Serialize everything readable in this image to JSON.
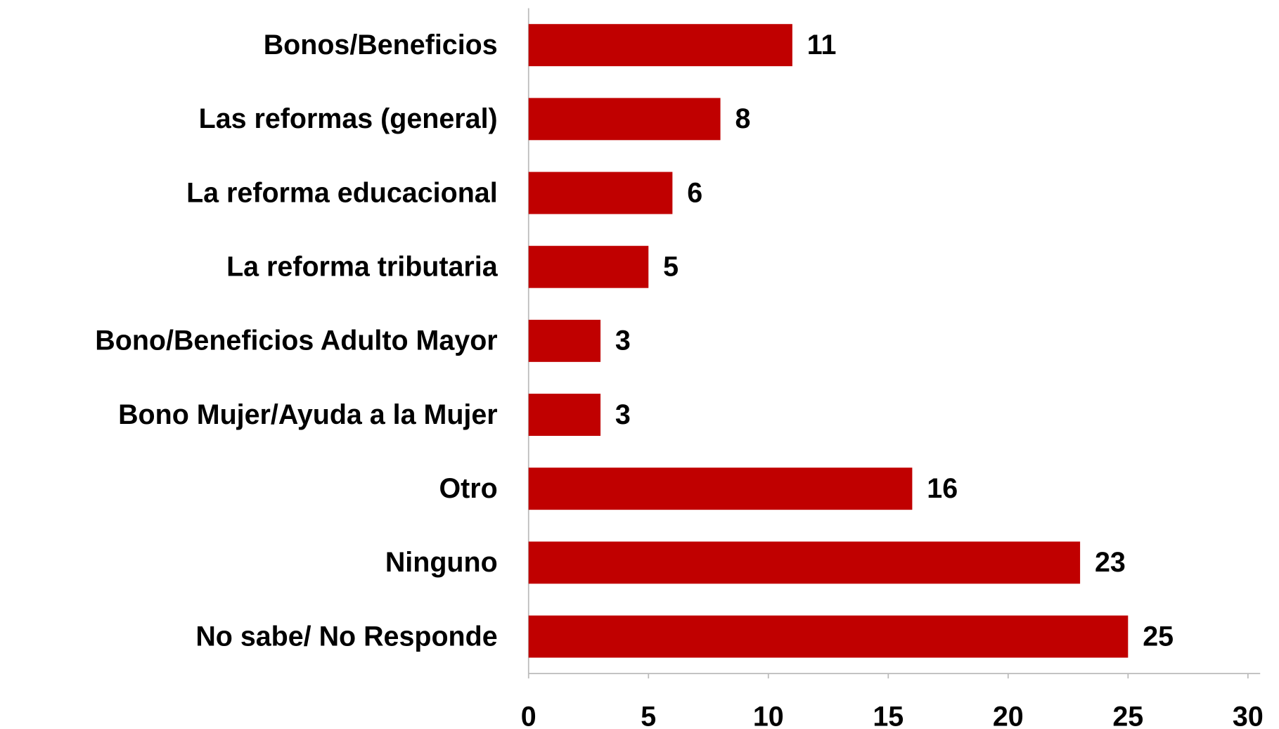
{
  "chart_data": {
    "type": "barh",
    "categories": [
      "Bonos/Beneficios",
      "Las reformas (general)",
      "La reforma educacional",
      "La reforma tributaria",
      "Bono/Beneficios Adulto Mayor",
      "Bono Mujer/Ayuda a la Mujer",
      "Otro",
      "Ninguno",
      "No sabe/ No Responde"
    ],
    "values": [
      11,
      8,
      6,
      5,
      3,
      3,
      16,
      23,
      25
    ],
    "color": "#c00000",
    "xlim": [
      0,
      30
    ],
    "xticks": [
      0,
      5,
      10,
      15,
      20,
      25,
      30
    ],
    "grid": false
  }
}
